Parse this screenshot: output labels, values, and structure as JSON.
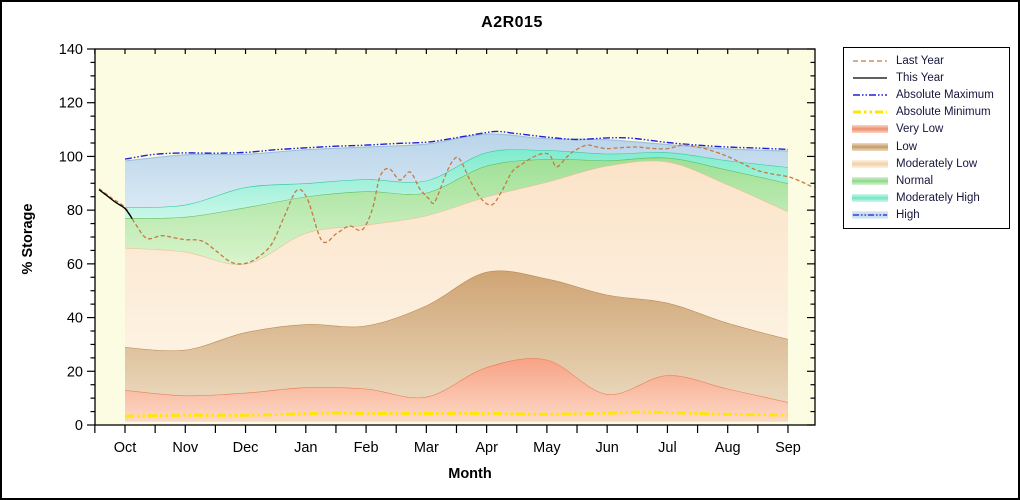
{
  "title": "A2R015",
  "axes": {
    "y_label": "% Storage",
    "x_label": "Month",
    "y_tick_labels": [
      "0",
      "20",
      "40",
      "60",
      "80",
      "100",
      "120",
      "140"
    ],
    "months": [
      "Oct",
      "Nov",
      "Dec",
      "Jan",
      "Feb",
      "Mar",
      "Apr",
      "May",
      "Jun",
      "Jul",
      "Aug",
      "Sep"
    ]
  },
  "colors": {
    "plot_background": "#fcfce2",
    "axis": "#000000",
    "figure_background": "#ffffff"
  },
  "legend": {
    "entries": [
      {
        "label": "Last Year",
        "swatch": "line",
        "color": "#c47a45",
        "dash": "5 3",
        "width": 1.3
      },
      {
        "label": "This Year",
        "swatch": "line",
        "color": "#000000",
        "dash": "",
        "width": 1.3
      },
      {
        "label": "Absolute Maximum",
        "swatch": "line",
        "color": "#2020df",
        "dash": "7 2 1.5 2 1.5 2",
        "width": 1.4
      },
      {
        "label": "Absolute Minimum",
        "swatch": "line",
        "color": "#ffe800",
        "dash": "8 3 2.5 3 2.5 3",
        "width": 3
      },
      {
        "label": "Very Low",
        "swatch": "band",
        "edge": "#fbd6c4",
        "center": "#ec8e6e"
      },
      {
        "label": "Low",
        "swatch": "band",
        "edge": "#ecdcc2",
        "center": "#c69b6a"
      },
      {
        "label": "Moderately Low",
        "swatch": "band",
        "edge": "#fdf2e4",
        "center": "#f3d0a8"
      },
      {
        "label": "Normal",
        "swatch": "band",
        "edge": "#d9f3d0",
        "center": "#8cd88a"
      },
      {
        "label": "Moderately High",
        "swatch": "band",
        "edge": "#d2f7ec",
        "center": "#72e4c4"
      },
      {
        "label": "High",
        "swatch": "band",
        "edge": "#e6f0f8",
        "center": "#b7d3e8",
        "overlay_line": "#2020df",
        "overlay_dash": "6 2 1.5 2 1.5 2"
      }
    ]
  },
  "chart_data": {
    "type": "area",
    "title": "A2R015",
    "xlabel": "Month",
    "ylabel": "% Storage",
    "ylim": [
      0,
      140
    ],
    "y_major_step": 20,
    "y_minor_step": 5,
    "grid": false,
    "legend_position": "right-outside",
    "categories": [
      "Oct",
      "Nov",
      "Dec",
      "Jan",
      "Feb",
      "Mar",
      "Apr",
      "May",
      "Jun",
      "Jul",
      "Aug",
      "Sep"
    ],
    "bands": [
      {
        "name": "Very Low",
        "bottom_constant": 1.2,
        "top": [
          13,
          11,
          12,
          14,
          13.5,
          10.5,
          21.5,
          24.3,
          11.5,
          18.5,
          13.5,
          8.5
        ],
        "fill_top": "#f7a285",
        "fill_bottom": "#fcd8c6",
        "edge": "#ec7e58"
      },
      {
        "name": "Low",
        "top": [
          29,
          28,
          34.5,
          37.5,
          37,
          44.5,
          57,
          54.5,
          48.5,
          45.5,
          38,
          32
        ],
        "fill_top": "#cfa474",
        "fill_bottom": "#ead8bc",
        "edge": "#bb8e58"
      },
      {
        "name": "Moderately Low",
        "top": [
          66,
          64.5,
          60,
          71.5,
          74.5,
          78,
          85,
          90.5,
          96.5,
          98,
          89.5,
          79.5
        ],
        "fill_top": "#fbe3c8",
        "fill_bottom": "#fdf2e2",
        "edge": "#ecc096"
      },
      {
        "name": "Normal",
        "top": [
          77,
          77.5,
          81,
          85,
          87,
          86.5,
          96.5,
          99,
          98.5,
          99.5,
          95,
          90
        ],
        "fill_top": "#9fe096",
        "fill_bottom": "#d9f4cc",
        "edge": "#62c062"
      },
      {
        "name": "Moderately High",
        "top": [
          81,
          82,
          88.5,
          90,
          91.5,
          91,
          101.5,
          102.3,
          101,
          101.5,
          98.5,
          96
        ],
        "fill_top": "#7feccd",
        "fill_bottom": "#c9f7e9",
        "edge": "#38cca4"
      },
      {
        "name": "High",
        "top": [
          98.3,
          100.6,
          100.8,
          102.5,
          103.5,
          104.6,
          108.3,
          106.6,
          106.2,
          104.4,
          102.8,
          102
        ],
        "fill_top": "#b9d4e9",
        "fill_bottom": "#d8e9f4",
        "edge": "#9fc0da"
      }
    ],
    "lines": [
      {
        "name": "Absolute Minimum",
        "color": "#ffe800",
        "width": 3,
        "dash": "9 3 2.5 3 2.5 3",
        "points": [
          [
            0,
            3.3
          ],
          [
            1,
            3.6
          ],
          [
            2,
            3.6
          ],
          [
            3,
            4.2
          ],
          [
            3.5,
            4.5
          ],
          [
            4,
            4.3
          ],
          [
            5,
            4.3
          ],
          [
            6,
            4.3
          ],
          [
            7,
            4.0
          ],
          [
            8,
            4.4
          ],
          [
            8.5,
            4.8
          ],
          [
            9,
            4.6
          ],
          [
            10,
            4.0
          ],
          [
            11,
            3.7
          ]
        ]
      },
      {
        "name": "Absolute Maximum",
        "color": "#2020df",
        "width": 1.4,
        "dash": "7 2 1.5 2 1.5 2",
        "points": [
          [
            0,
            99
          ],
          [
            0.5,
            100.8
          ],
          [
            1,
            101.3
          ],
          [
            1.5,
            101.2
          ],
          [
            2,
            101.5
          ],
          [
            2.5,
            102.5
          ],
          [
            3,
            103.2
          ],
          [
            3.5,
            103.8
          ],
          [
            4,
            104.2
          ],
          [
            4.5,
            104.8
          ],
          [
            5,
            105.3
          ],
          [
            5.4,
            106.6
          ],
          [
            6,
            108.9
          ],
          [
            6.2,
            109.3
          ],
          [
            6.5,
            108.5
          ],
          [
            7,
            107.2
          ],
          [
            7.5,
            106.3
          ],
          [
            8,
            106.9
          ],
          [
            8.4,
            106.8
          ],
          [
            9,
            105.2
          ],
          [
            9.5,
            104.2
          ],
          [
            10,
            103.5
          ],
          [
            10.5,
            103.1
          ],
          [
            11,
            102.6
          ]
        ]
      },
      {
        "name": "Last Year",
        "color": "#c47a45",
        "width": 1.3,
        "dash": "4 2.5",
        "points": [
          [
            -0.43,
            88
          ],
          [
            -0.22,
            84.5
          ],
          [
            0,
            81
          ],
          [
            0.17,
            75
          ],
          [
            0.36,
            69.5
          ],
          [
            0.61,
            70.5
          ],
          [
            0.86,
            69.5
          ],
          [
            1.01,
            69
          ],
          [
            1.28,
            68.5
          ],
          [
            1.53,
            64.5
          ],
          [
            1.77,
            60.5
          ],
          [
            2.02,
            60.3
          ],
          [
            2.24,
            63
          ],
          [
            2.44,
            67.6
          ],
          [
            2.65,
            78
          ],
          [
            2.85,
            87.4
          ],
          [
            3.03,
            84
          ],
          [
            3.27,
            68.5
          ],
          [
            3.52,
            71.5
          ],
          [
            3.73,
            74.1
          ],
          [
            3.93,
            72.6
          ],
          [
            4.1,
            80
          ],
          [
            4.23,
            92.4
          ],
          [
            4.38,
            95.5
          ],
          [
            4.56,
            91.2
          ],
          [
            4.73,
            94.2
          ],
          [
            4.89,
            88
          ],
          [
            5.04,
            84.3
          ],
          [
            5.14,
            83.1
          ],
          [
            5.34,
            94.2
          ],
          [
            5.46,
            99
          ],
          [
            5.56,
            98.8
          ],
          [
            5.75,
            90
          ],
          [
            5.92,
            84
          ],
          [
            6.09,
            82
          ],
          [
            6.25,
            87
          ],
          [
            6.42,
            94.2
          ],
          [
            6.58,
            97
          ],
          [
            6.75,
            99.5
          ],
          [
            6.92,
            101
          ],
          [
            7.05,
            100.5
          ],
          [
            7.16,
            96.1
          ],
          [
            7.33,
            99.8
          ],
          [
            7.45,
            102
          ],
          [
            7.66,
            104.2
          ],
          [
            7.83,
            103.5
          ],
          [
            8,
            102.9
          ],
          [
            8.24,
            103.3
          ],
          [
            8.49,
            103.5
          ],
          [
            8.74,
            103
          ],
          [
            9,
            102.9
          ],
          [
            9.24,
            104.2
          ],
          [
            9.4,
            103.9
          ],
          [
            9.57,
            103.2
          ],
          [
            9.82,
            101.5
          ],
          [
            10.02,
            99.8
          ],
          [
            10.23,
            97.5
          ],
          [
            10.48,
            94.9
          ],
          [
            10.73,
            93.5
          ],
          [
            11.01,
            92.4
          ],
          [
            11.23,
            90.5
          ],
          [
            11.39,
            88.8
          ]
        ]
      },
      {
        "name": "This Year",
        "color": "#000000",
        "width": 1.4,
        "dash": "",
        "points": [
          [
            -0.43,
            87.6
          ],
          [
            -0.3,
            85.4
          ],
          [
            -0.15,
            82.8
          ],
          [
            0,
            80.6
          ],
          [
            0.12,
            76.8
          ]
        ]
      }
    ]
  }
}
